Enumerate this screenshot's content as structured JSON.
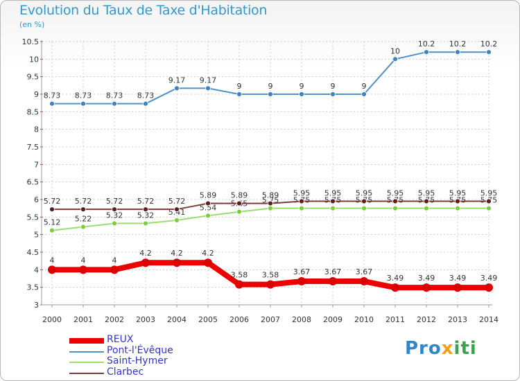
{
  "title": "Evolution du Taux de Taxe d'Habitation",
  "subtitle": "(en %)",
  "brand": {
    "part1": "Pro",
    "part2": "x",
    "part3": "iti"
  },
  "colors": {
    "axis": "#999999",
    "grid": "#cccccc",
    "tick_text": "#333333",
    "label_text": "#333333",
    "brand1": "#2f86c8",
    "brand2": "#f2a020",
    "brand3": "#3aa24a"
  },
  "chart_data": {
    "type": "line",
    "x": [
      "2000",
      "2001",
      "2002",
      "2003",
      "2004",
      "2005",
      "2006",
      "2007",
      "2008",
      "2009",
      "2010",
      "2011",
      "2012",
      "2013",
      "2014"
    ],
    "yticks": [
      "3",
      "3.5",
      "4",
      "4.5",
      "5",
      "5.5",
      "6",
      "6.5",
      "7",
      "7.5",
      "8",
      "8.5",
      "9",
      "9.5",
      "10",
      "10.5"
    ],
    "ylim": [
      3,
      10.5
    ],
    "grid": true,
    "legend_position": "bottom-left",
    "series": [
      {
        "name": "Pont-l'Évêque",
        "color": "#4f90c6",
        "point": "#3f84c0",
        "width": 2,
        "values": [
          8.73,
          8.73,
          8.73,
          8.73,
          9.17,
          9.17,
          9,
          9,
          9,
          9,
          9,
          10,
          10.2,
          10.2,
          10.2
        ],
        "labels": [
          "8.73",
          "8.73",
          "8.73",
          "8.73",
          "9.17",
          "9.17",
          "9",
          "9",
          "9",
          "9",
          "9",
          "10",
          "10.2",
          "10.2",
          "10.2"
        ]
      },
      {
        "name": "Saint-Hymer",
        "color": "#9bdc6e",
        "point": "#7ccc3c",
        "width": 2,
        "values": [
          5.12,
          5.22,
          5.32,
          5.32,
          5.41,
          5.54,
          5.65,
          5.75,
          5.75,
          5.75,
          5.75,
          5.75,
          5.75,
          5.75,
          5.75
        ],
        "labels": [
          "5.12",
          "5.22",
          "5.32",
          "5.32",
          "5.41",
          "5.54",
          "5.65",
          "5.75",
          "5.75",
          "5.75",
          "5.75",
          "5.75",
          "5.75",
          "5.75",
          "5.75"
        ]
      },
      {
        "name": "Clarbec",
        "color": "#7a3a3a",
        "point": "#5c1e1e",
        "width": 2,
        "values": [
          5.72,
          5.72,
          5.72,
          5.72,
          5.72,
          5.89,
          5.89,
          5.89,
          5.95,
          5.95,
          5.95,
          5.95,
          5.95,
          5.95,
          5.95
        ],
        "labels": [
          "5.72",
          "5.72",
          "5.72",
          "5.72",
          "5.72",
          "5.89",
          "5.89",
          "5.89",
          "5.95",
          "5.95",
          "5.95",
          "5.95",
          "5.95",
          "5.95",
          "5.95"
        ]
      },
      {
        "name": "REUX",
        "color": "#ee0000",
        "point": "#dd0000",
        "width": 8,
        "values": [
          4,
          4,
          4,
          4.2,
          4.2,
          4.2,
          3.58,
          3.58,
          3.67,
          3.67,
          3.67,
          3.49,
          3.49,
          3.49,
          3.49
        ],
        "labels": [
          "4",
          "4",
          "4",
          "4.2",
          "4.2",
          "4.2",
          "3.58",
          "3.58",
          "3.67",
          "3.67",
          "3.67",
          "3.49",
          "3.49",
          "3.49",
          "3.49"
        ]
      }
    ]
  },
  "legend": [
    "REUX",
    "Pont-l'Évêque",
    "Saint-Hymer",
    "Clarbec"
  ]
}
